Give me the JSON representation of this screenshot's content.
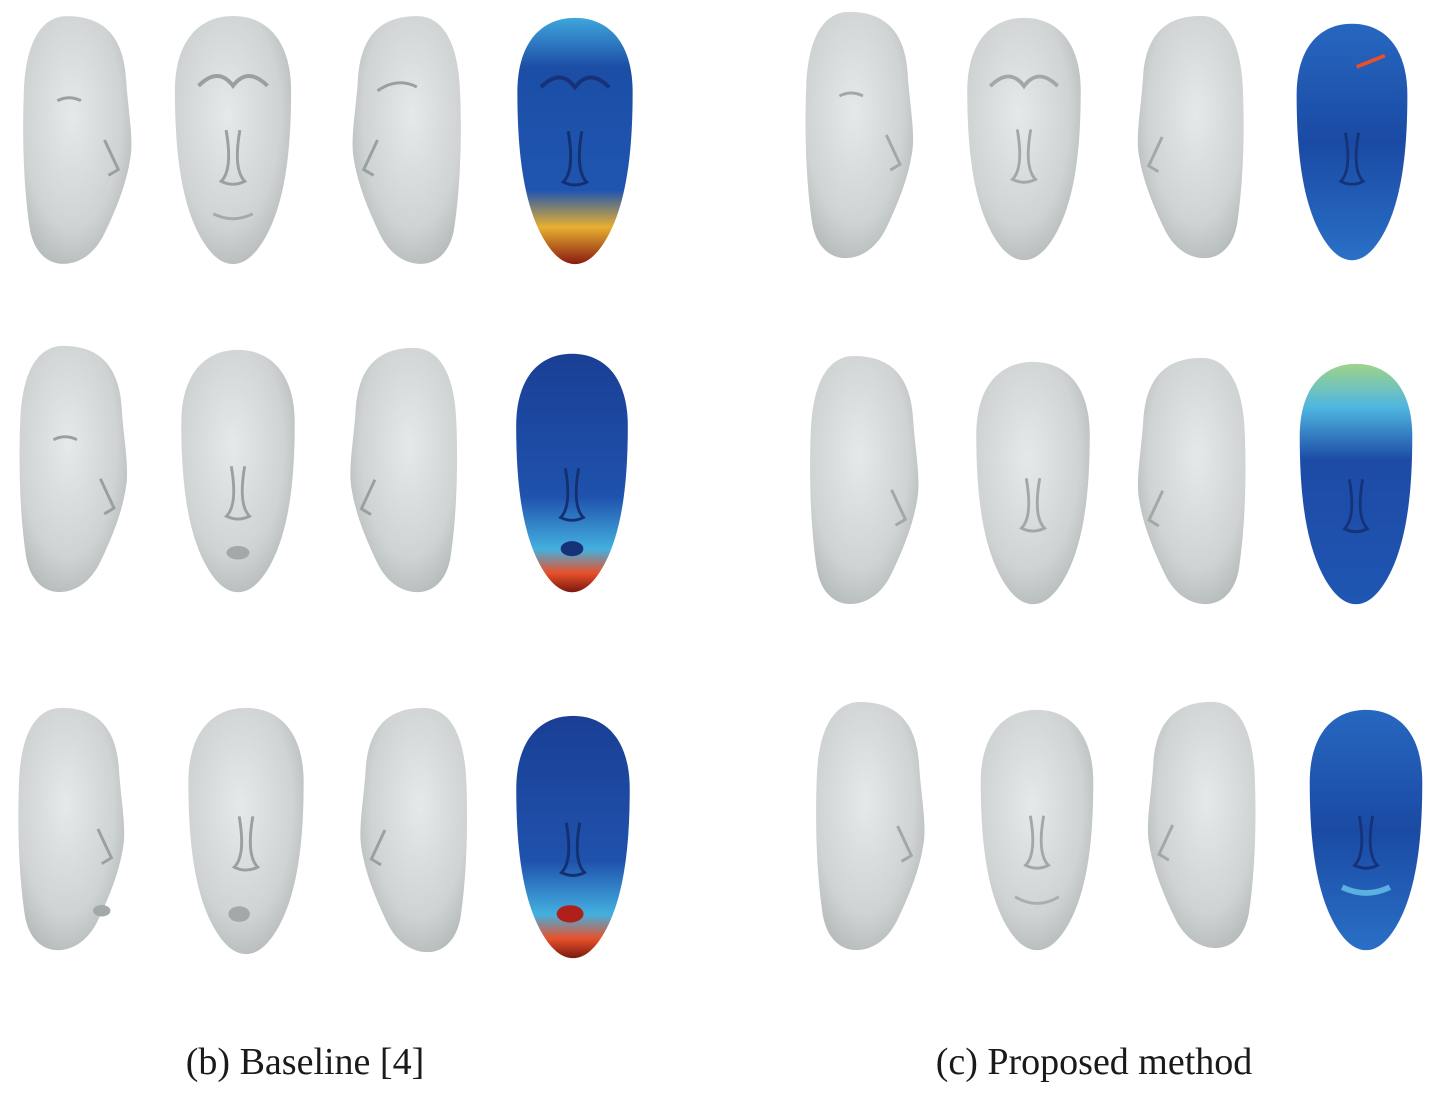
{
  "figure": {
    "panels": [
      {
        "id": "baseline",
        "caption": "(b) Baseline [4]",
        "rows": [
          {
            "views": [
              "left-profile",
              "front",
              "right-profile"
            ],
            "error_map": "high-error-jaw"
          },
          {
            "views": [
              "left-profile",
              "front",
              "right-profile"
            ],
            "error_map": "high-error-mouth-jaw"
          },
          {
            "views": [
              "left-profile",
              "front",
              "right-profile"
            ],
            "error_map": "high-error-chin"
          }
        ]
      },
      {
        "id": "proposed",
        "caption": "(c) Proposed method",
        "rows": [
          {
            "views": [
              "left-profile",
              "front",
              "right-profile"
            ],
            "error_map": "low-error"
          },
          {
            "views": [
              "left-profile",
              "front",
              "right-profile"
            ],
            "error_map": "low-error-forehead"
          },
          {
            "views": [
              "left-profile",
              "front",
              "right-profile"
            ],
            "error_map": "low-error"
          }
        ]
      }
    ],
    "colors": {
      "mesh": "#d3d6d6",
      "mesh_shadow": "#a9adad",
      "error_low": "#1e4fa8",
      "error_mid": "#4fb6e0",
      "error_high": "#e8502a",
      "error_max": "#8a1a10"
    }
  }
}
